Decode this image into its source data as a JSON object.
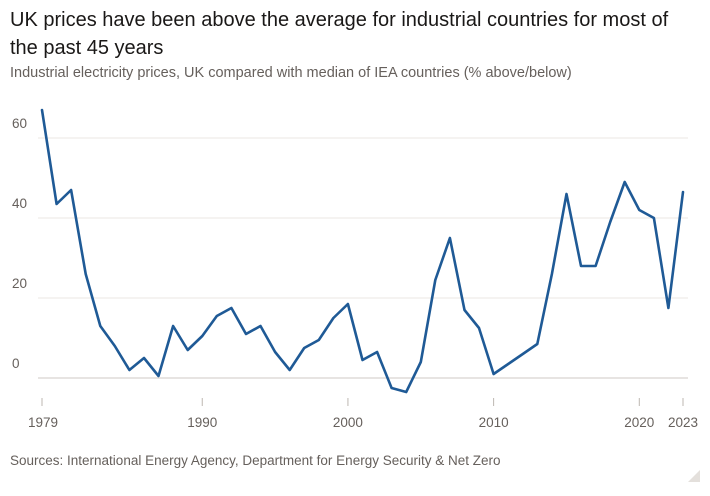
{
  "title": "UK prices have been above the average for industrial countries for most of the past 45 years",
  "subtitle": "Industrial electricity prices, UK compared with median of IEA countries (% above/below)",
  "source": "Sources: International Energy Agency, Department for Energy Security & Net Zero",
  "colors": {
    "line": "#1f5a96",
    "grid": "#ebe7e3",
    "zero_line": "#cfcac5",
    "text": "#66605c"
  },
  "chart_data": {
    "type": "line",
    "title": "UK prices have been above the average for industrial countries for most of the past 45 years",
    "subtitle": "Industrial electricity prices, UK compared with median of IEA countries (% above/below)",
    "xlabel": "",
    "ylabel": "",
    "xlim": [
      1979,
      2023
    ],
    "ylim": [
      -6,
      70
    ],
    "y_ticks": [
      0,
      20,
      40,
      60
    ],
    "x_ticks": [
      1979,
      1990,
      2000,
      2010,
      2020,
      2023
    ],
    "x_tick_labels": [
      "1979",
      "1990",
      "2000",
      "2010",
      "2020",
      "2023"
    ],
    "grid": true,
    "legend": "none",
    "series": [
      {
        "x": [
          1979,
          1980,
          1981,
          1982,
          1983,
          1984,
          1985,
          1986,
          1987,
          1988,
          1989,
          1990,
          1991,
          1992,
          1993,
          1994,
          1995,
          1996,
          1997,
          1998,
          1999,
          2000,
          2001,
          2002,
          2003,
          2004,
          2005,
          2006,
          2007,
          2008,
          2009,
          2010,
          2011,
          2012,
          2013,
          2014,
          2015,
          2016,
          2017,
          2018,
          2019,
          2020,
          2021,
          2022,
          2023
        ],
        "values": [
          67,
          43.5,
          47,
          26,
          13,
          8,
          2,
          5,
          0.5,
          13,
          7,
          10.5,
          15.5,
          17.5,
          11,
          13,
          6.5,
          2,
          7.5,
          9.5,
          15,
          18.5,
          4.5,
          6.5,
          -2.5,
          -3.5,
          4,
          24.5,
          35,
          17,
          12.5,
          1,
          3.5,
          6,
          8.5,
          26,
          46,
          28,
          28,
          39,
          49,
          42,
          40,
          17.5,
          46.5
        ]
      }
    ]
  }
}
